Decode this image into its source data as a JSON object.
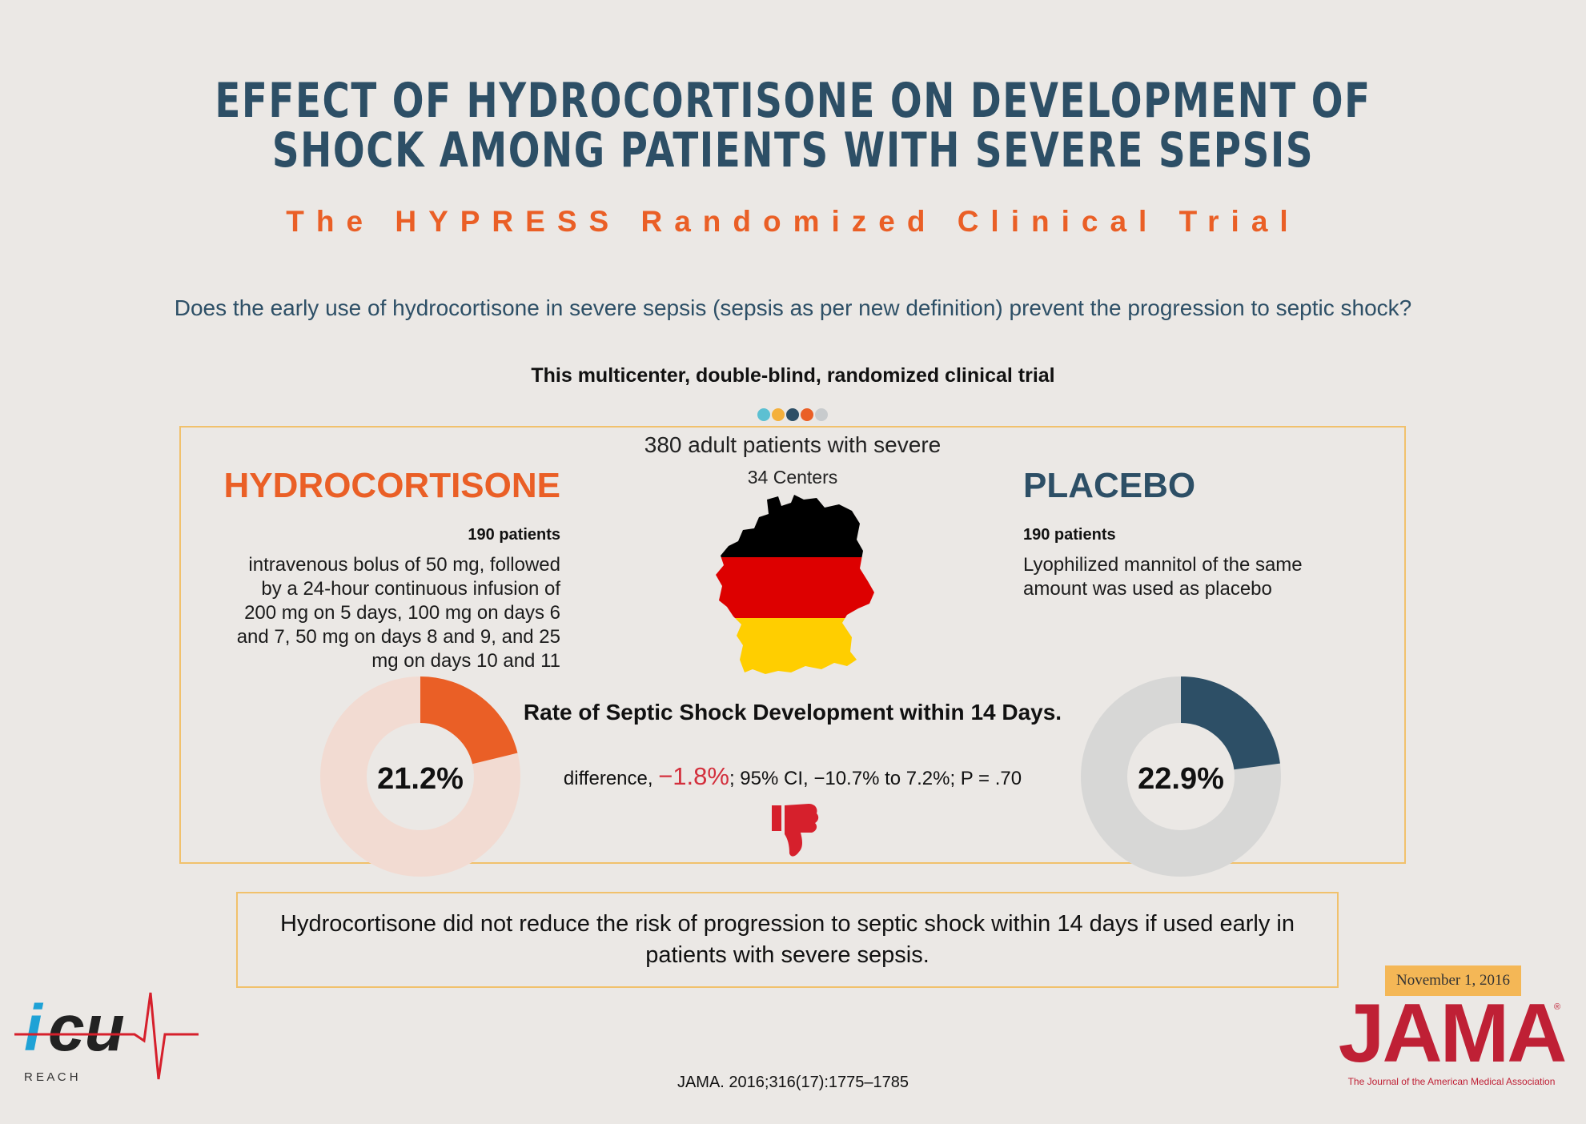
{
  "header": {
    "title_line1": "EFFECT OF HYDROCORTISONE ON DEVELOPMENT OF",
    "title_line2": "SHOCK AMONG PATIENTS WITH SEVERE SEPSIS",
    "subtitle": "The HYPRESS Randomized Clinical Trial",
    "question": "Does the early use of hydrocortisone in severe sepsis (sepsis as per new definition) prevent the progression to septic shock?",
    "design": "This multicenter, double-blind, randomized clinical trial"
  },
  "dots": [
    "#5cc0d2",
    "#f4b03c",
    "#2d4f66",
    "#ea5f26",
    "#c8cbcd"
  ],
  "study": {
    "patients": "380 adult patients with severe",
    "centers": "34 Centers",
    "country_flag_colors": [
      "#000000",
      "#dd0000",
      "#ffce00"
    ]
  },
  "arms": {
    "hydrocortisone": {
      "name": "HYDROCORTISONE",
      "count": "190 patients",
      "description_lines": [
        "intravenous bolus of 50 mg, followed",
        "by a 24-hour continuous infusion of",
        "200 mg on 5 days, 100 mg on days 6",
        "and 7, 50 mg on days 8 and 9, and 25",
        "mg on days 10 and 11"
      ],
      "rate_label": "21.2%",
      "rate_value": 21.2,
      "color": "#ea5f26",
      "track_color": "#f2dbd2"
    },
    "placebo": {
      "name": "PLACEBO",
      "count": "190 patients",
      "description_lines": [
        "Lyophilized mannitol of the same",
        "amount was used as placebo"
      ],
      "rate_label": "22.9%",
      "rate_value": 22.9,
      "color": "#2d4f66",
      "track_color": "#d7d7d6"
    }
  },
  "outcome": {
    "title": "Rate of Septic Shock Development within 14 Days.",
    "diff_prefix": "difference, ",
    "diff_value": "−1.8%",
    "diff_suffix": "; 95% CI, −10.7% to 7.2%; P = .70",
    "thumb_icon": "thumbs-down-icon",
    "thumb_color": "#d6202c"
  },
  "conclusion": "Hydrocortisone did not reduce the risk of progression to septic shock within 14 days if used early in patients with severe sepsis.",
  "footer": {
    "citation": "JAMA. 2016;316(17):1775–1785",
    "icu_logo_text": "icu",
    "icu_logo_sub": "R E A C H",
    "jama_date": "November 1, 2016",
    "jama_word": "JAMA",
    "jama_reg": "®",
    "jama_sub": "The Journal of the American Medical Association"
  }
}
